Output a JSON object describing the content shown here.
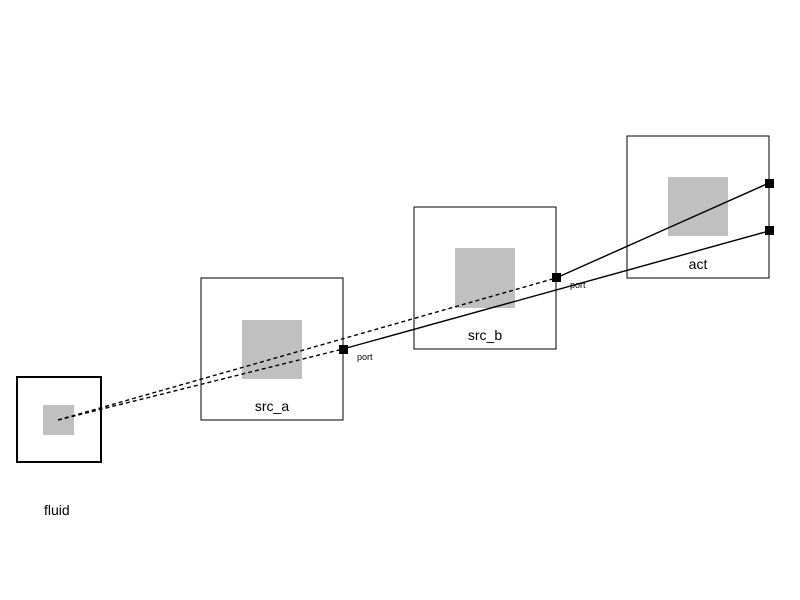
{
  "blocks": {
    "fluid": {
      "label": "fluid"
    },
    "src_a": {
      "label": "src_a"
    },
    "src_b": {
      "label": "src_b"
    },
    "act": {
      "label": "act"
    }
  },
  "ports": {
    "src_a_port": {
      "label": "port"
    },
    "src_b_port": {
      "label": "port"
    }
  },
  "connections": [
    {
      "from": "fluid",
      "to": "src_a_port",
      "style": "dashed"
    },
    {
      "from": "fluid",
      "to": "src_b_port",
      "style": "dashed"
    },
    {
      "from": "src_a_port",
      "to": "act_port_lower",
      "style": "solid"
    },
    {
      "from": "src_b_port",
      "to": "act_port_upper",
      "style": "solid"
    }
  ],
  "colors": {
    "outline": "#000000",
    "icon_fill": "#c0c0c0",
    "port": "#000000",
    "background": "#ffffff"
  }
}
